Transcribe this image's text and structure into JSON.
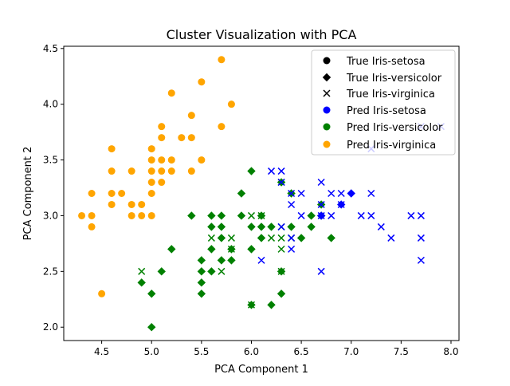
{
  "chart_data": {
    "type": "scatter",
    "title": "Cluster Visualization with PCA",
    "xlabel": "PCA Component 1",
    "ylabel": "PCA Component 2",
    "xlim": [
      4.12,
      8.08
    ],
    "ylim": [
      1.88,
      4.52
    ],
    "xticks": [
      4.5,
      5.0,
      5.5,
      6.0,
      6.5,
      7.0,
      7.5,
      8.0
    ],
    "yticks": [
      2.0,
      2.5,
      3.0,
      3.5,
      4.0,
      4.5
    ],
    "grid": false,
    "legend_position": "top-right",
    "colors": {
      "setosa": "#0000ff",
      "versicolor": "#008000",
      "virginica": "#ffa500",
      "legend_marker": "#000000"
    },
    "legend": [
      {
        "label": "True Iris-setosa",
        "marker": "circle",
        "color": "#000000"
      },
      {
        "label": "True Iris-versicolor",
        "marker": "diamond",
        "color": "#000000"
      },
      {
        "label": "True Iris-virginica",
        "marker": "x",
        "color": "#000000"
      },
      {
        "label": "Pred Iris-setosa",
        "marker": "circle",
        "color": "#0000ff"
      },
      {
        "label": "Pred Iris-versicolor",
        "marker": "circle",
        "color": "#008000"
      },
      {
        "label": "Pred Iris-virginica",
        "marker": "circle",
        "color": "#ffa500"
      }
    ],
    "series": [
      {
        "name": "True Iris-setosa / Pred Iris-virginica",
        "marker": "circle",
        "color": "#ffa500",
        "points": [
          [
            4.3,
            3.0
          ],
          [
            4.4,
            2.9
          ],
          [
            4.4,
            3.0
          ],
          [
            4.4,
            3.2
          ],
          [
            4.5,
            2.3
          ],
          [
            4.6,
            3.1
          ],
          [
            4.6,
            3.2
          ],
          [
            4.6,
            3.4
          ],
          [
            4.6,
            3.6
          ],
          [
            4.7,
            3.2
          ],
          [
            4.8,
            3.0
          ],
          [
            4.8,
            3.1
          ],
          [
            4.8,
            3.4
          ],
          [
            4.9,
            3.0
          ],
          [
            4.9,
            3.1
          ],
          [
            5.0,
            3.0
          ],
          [
            5.0,
            3.2
          ],
          [
            5.0,
            3.3
          ],
          [
            5.0,
            3.4
          ],
          [
            5.0,
            3.5
          ],
          [
            5.0,
            3.6
          ],
          [
            5.1,
            3.3
          ],
          [
            5.1,
            3.4
          ],
          [
            5.1,
            3.5
          ],
          [
            5.1,
            3.7
          ],
          [
            5.1,
            3.8
          ],
          [
            5.2,
            3.4
          ],
          [
            5.2,
            3.5
          ],
          [
            5.2,
            4.1
          ],
          [
            5.3,
            3.7
          ],
          [
            5.4,
            3.4
          ],
          [
            5.4,
            3.7
          ],
          [
            5.4,
            3.9
          ],
          [
            5.5,
            3.5
          ],
          [
            5.5,
            4.2
          ],
          [
            5.7,
            3.8
          ],
          [
            5.7,
            4.4
          ],
          [
            5.8,
            4.0
          ]
        ]
      },
      {
        "name": "True Iris-versicolor / Pred Iris-versicolor",
        "marker": "diamond",
        "color": "#008000",
        "points": [
          [
            4.9,
            2.4
          ],
          [
            5.0,
            2.0
          ],
          [
            5.0,
            2.3
          ],
          [
            5.1,
            2.5
          ],
          [
            5.2,
            2.7
          ],
          [
            5.4,
            3.0
          ],
          [
            5.5,
            2.3
          ],
          [
            5.5,
            2.4
          ],
          [
            5.5,
            2.5
          ],
          [
            5.5,
            2.6
          ],
          [
            5.6,
            2.5
          ],
          [
            5.6,
            2.7
          ],
          [
            5.6,
            2.9
          ],
          [
            5.6,
            3.0
          ],
          [
            5.7,
            2.6
          ],
          [
            5.7,
            2.8
          ],
          [
            5.7,
            2.9
          ],
          [
            5.7,
            3.0
          ],
          [
            5.8,
            2.6
          ],
          [
            5.8,
            2.7
          ],
          [
            5.9,
            3.0
          ],
          [
            5.9,
            3.2
          ],
          [
            6.0,
            2.2
          ],
          [
            6.0,
            2.7
          ],
          [
            6.0,
            2.9
          ],
          [
            6.0,
            3.4
          ],
          [
            6.1,
            2.8
          ],
          [
            6.1,
            2.9
          ],
          [
            6.1,
            3.0
          ],
          [
            6.2,
            2.2
          ],
          [
            6.2,
            2.9
          ],
          [
            6.3,
            2.3
          ],
          [
            6.3,
            2.5
          ],
          [
            6.3,
            3.3
          ],
          [
            6.4,
            2.9
          ],
          [
            6.4,
            3.2
          ],
          [
            6.5,
            2.8
          ],
          [
            6.6,
            2.9
          ],
          [
            6.6,
            3.0
          ],
          [
            6.7,
            3.0
          ],
          [
            6.7,
            3.1
          ],
          [
            6.8,
            2.8
          ]
        ]
      },
      {
        "name": "True Iris-versicolor / Pred Iris-setosa",
        "marker": "diamond",
        "color": "#0000ff",
        "points": [
          [
            6.7,
            3.0
          ],
          [
            6.9,
            3.1
          ],
          [
            7.0,
            3.2
          ]
        ]
      },
      {
        "name": "True Iris-virginica / Pred Iris-versicolor",
        "marker": "x",
        "color": "#008000",
        "points": [
          [
            4.9,
            2.5
          ],
          [
            5.6,
            2.8
          ],
          [
            5.7,
            2.5
          ],
          [
            5.8,
            2.7
          ],
          [
            5.8,
            2.8
          ],
          [
            6.0,
            2.2
          ],
          [
            6.0,
            3.0
          ],
          [
            6.1,
            3.0
          ],
          [
            6.2,
            2.8
          ],
          [
            6.3,
            2.5
          ],
          [
            6.3,
            2.7
          ],
          [
            6.3,
            2.8
          ],
          [
            6.3,
            2.9
          ],
          [
            6.3,
            3.3
          ],
          [
            6.4,
            2.8
          ]
        ]
      },
      {
        "name": "True Iris-virginica / Pred Iris-setosa",
        "marker": "x",
        "color": "#0000ff",
        "points": [
          [
            6.1,
            2.6
          ],
          [
            6.2,
            3.4
          ],
          [
            6.3,
            2.9
          ],
          [
            6.3,
            3.3
          ],
          [
            6.3,
            3.4
          ],
          [
            6.4,
            2.7
          ],
          [
            6.4,
            2.8
          ],
          [
            6.4,
            3.1
          ],
          [
            6.4,
            3.2
          ],
          [
            6.5,
            3.0
          ],
          [
            6.5,
            3.2
          ],
          [
            6.7,
            2.5
          ],
          [
            6.7,
            3.0
          ],
          [
            6.7,
            3.1
          ],
          [
            6.7,
            3.3
          ],
          [
            6.8,
            3.0
          ],
          [
            6.8,
            3.2
          ],
          [
            6.9,
            3.1
          ],
          [
            6.9,
            3.2
          ],
          [
            7.1,
            3.0
          ],
          [
            7.2,
            3.0
          ],
          [
            7.2,
            3.2
          ],
          [
            7.2,
            3.6
          ],
          [
            7.3,
            2.9
          ],
          [
            7.4,
            2.8
          ],
          [
            7.6,
            3.0
          ],
          [
            7.7,
            2.6
          ],
          [
            7.7,
            2.8
          ],
          [
            7.7,
            3.0
          ],
          [
            7.7,
            3.8
          ],
          [
            7.9,
            3.8
          ]
        ]
      }
    ]
  }
}
